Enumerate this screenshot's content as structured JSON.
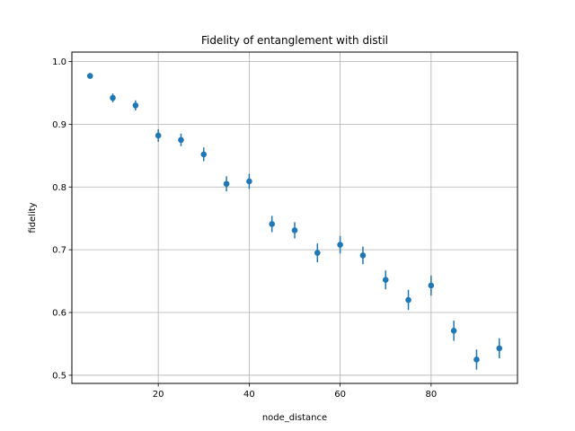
{
  "chart_data": {
    "type": "scatter",
    "title": "Fidelity of entanglement with distil",
    "xlabel": "node_distance",
    "ylabel": "fidelity",
    "xlim": [
      1,
      99
    ],
    "ylim": [
      0.487,
      1.015
    ],
    "xticks": [
      20,
      40,
      60,
      80
    ],
    "yticks": [
      0.5,
      0.6,
      0.7,
      0.8,
      0.9,
      1.0
    ],
    "ytick_labels": [
      "0.5",
      "0.6",
      "0.7",
      "0.8",
      "0.9",
      "1.0"
    ],
    "grid": true,
    "color": "#1f77b4",
    "series": [
      {
        "x": [
          5,
          10,
          15,
          20,
          25,
          30,
          35,
          40,
          45,
          50,
          55,
          60,
          65,
          70,
          75,
          80,
          85,
          90,
          95
        ],
        "y": [
          0.977,
          0.942,
          0.93,
          0.882,
          0.875,
          0.852,
          0.805,
          0.809,
          0.741,
          0.731,
          0.695,
          0.708,
          0.691,
          0.652,
          0.62,
          0.643,
          0.571,
          0.525,
          0.543
        ],
        "yerr": [
          0.004,
          0.007,
          0.008,
          0.01,
          0.01,
          0.011,
          0.012,
          0.012,
          0.013,
          0.013,
          0.015,
          0.014,
          0.014,
          0.015,
          0.016,
          0.016,
          0.016,
          0.016,
          0.016
        ]
      }
    ]
  }
}
